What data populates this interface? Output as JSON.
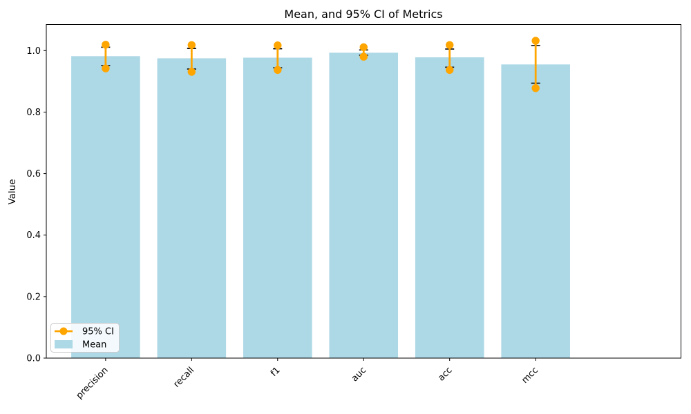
{
  "chart_data": {
    "type": "bar",
    "title": "Mean, and 95% CI of Metrics",
    "xlabel": "",
    "ylabel": "Value",
    "categories": [
      "precision",
      "recall",
      "f1",
      "auc",
      "acc",
      "mcc"
    ],
    "series": [
      {
        "name": "Mean",
        "style": "bar",
        "color": "#ADD8E6",
        "values": [
          0.982,
          0.975,
          0.977,
          0.993,
          0.978,
          0.955
        ]
      },
      {
        "name": "95% CI",
        "style": "dot-range",
        "color": "#FFA500",
        "low": [
          0.942,
          0.931,
          0.937,
          0.98,
          0.937,
          0.878
        ],
        "high": [
          1.019,
          1.018,
          1.017,
          1.011,
          1.018,
          1.032
        ]
      },
      {
        "name": "error-bar",
        "style": "capped-errorbar",
        "color": "#000000",
        "low": [
          0.951,
          0.94,
          0.944,
          0.985,
          0.946,
          0.894
        ],
        "high": [
          1.011,
          1.007,
          1.006,
          1.002,
          1.005,
          1.016
        ]
      }
    ],
    "ylim": [
      0,
      1.085
    ],
    "yticks": [
      "0.0",
      "0.2",
      "0.4",
      "0.6",
      "0.8",
      "1.0"
    ],
    "grid": false,
    "legend": {
      "position": "lower-left",
      "items": [
        {
          "label": "95% CI"
        },
        {
          "label": "Mean"
        }
      ]
    }
  }
}
